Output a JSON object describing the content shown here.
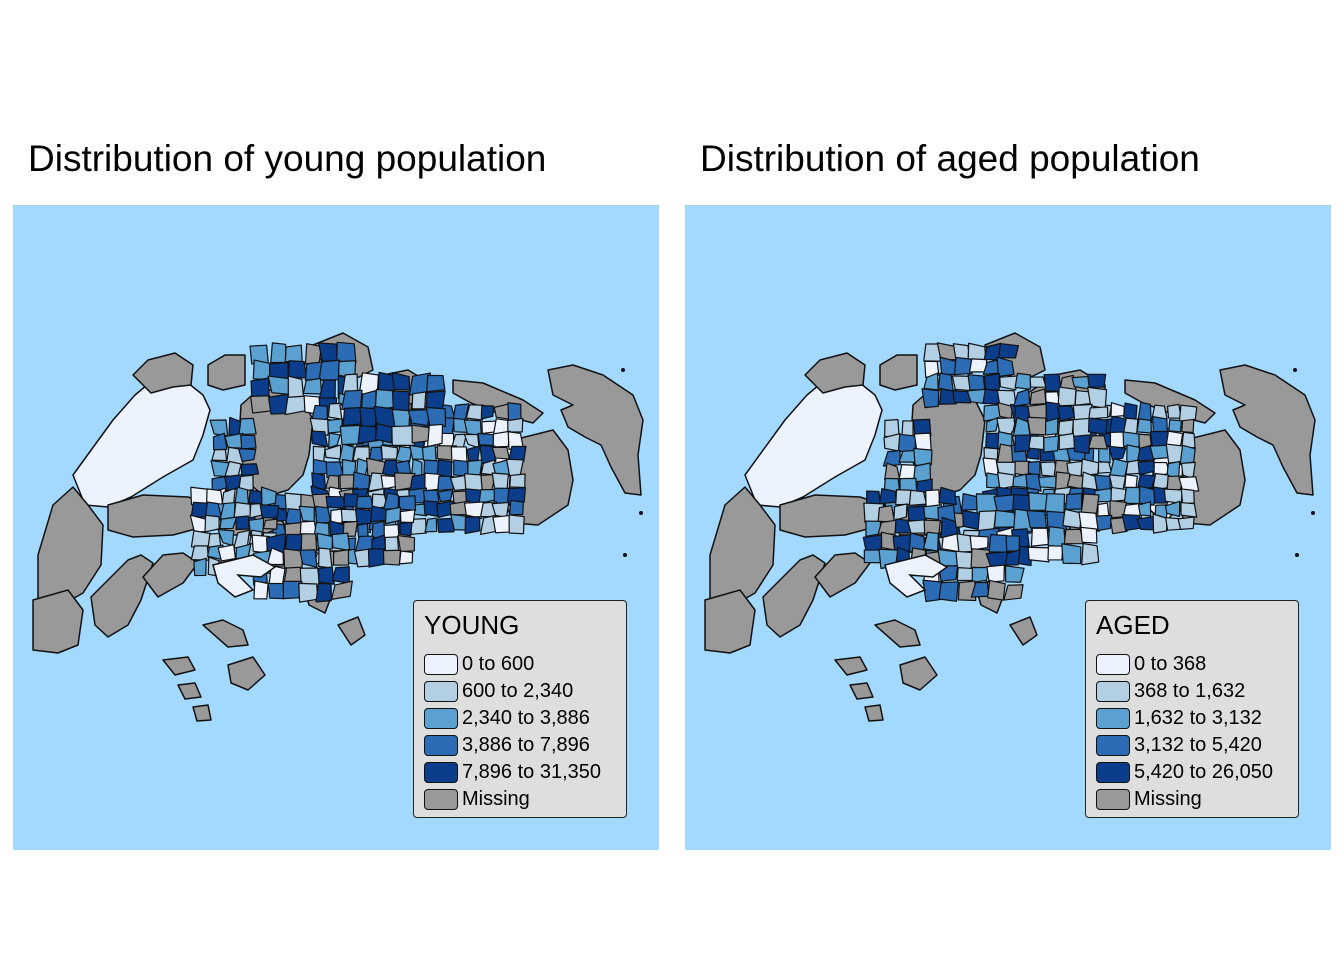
{
  "colors": {
    "sea": "#a3d8ff",
    "missing": "#999999",
    "class1": "#edf2ff",
    "class2": "#b3cfe3",
    "class3": "#5aa0d0",
    "class4": "#2c6cb4",
    "class5": "#0c3d8a"
  },
  "panels": [
    {
      "title": "Distribution of young population",
      "legend": {
        "title": "YOUNG",
        "items": [
          {
            "label": "0 to 600",
            "color": "#edf2ff"
          },
          {
            "label": "600 to 2,340",
            "color": "#b3cfe3"
          },
          {
            "label": "2,340 to 3,886",
            "color": "#5aa0d0"
          },
          {
            "label": "3,886 to 7,896",
            "color": "#2c6cb4"
          },
          {
            "label": "7,896 to 31,350",
            "color": "#0c3d8a"
          },
          {
            "label": "Missing",
            "color": "#999999"
          }
        ]
      }
    },
    {
      "title": "Distribution of aged population",
      "legend": {
        "title": "AGED",
        "items": [
          {
            "label": "0 to 368",
            "color": "#edf2ff"
          },
          {
            "label": "368 to 1,632",
            "color": "#b3cfe3"
          },
          {
            "label": "1,632 to 3,132",
            "color": "#5aa0d0"
          },
          {
            "label": "3,132 to 5,420",
            "color": "#2c6cb4"
          },
          {
            "label": "5,420 to 26,050",
            "color": "#0c3d8a"
          },
          {
            "label": "Missing",
            "color": "#999999"
          }
        ]
      }
    }
  ]
}
